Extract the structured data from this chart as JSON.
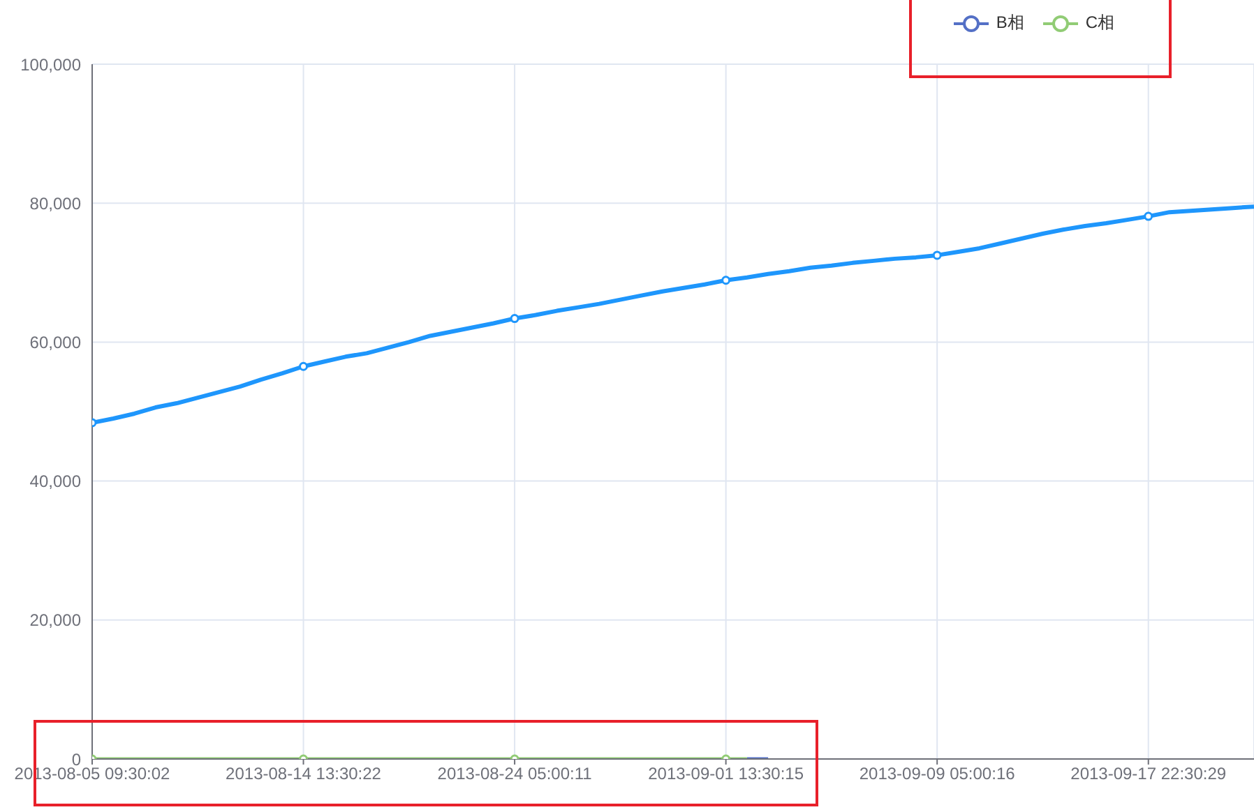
{
  "chart_data": {
    "type": "line",
    "categories": [
      "2013-08-05 09:30:02",
      null,
      null,
      null,
      null,
      null,
      null,
      null,
      null,
      null,
      "2013-08-14 13:30:22",
      null,
      null,
      null,
      null,
      null,
      null,
      null,
      null,
      null,
      "2013-08-24 05:00:11",
      null,
      null,
      null,
      null,
      null,
      null,
      null,
      null,
      null,
      "2013-09-01 13:30:15",
      null,
      null,
      null,
      null,
      null,
      null,
      null,
      null,
      null,
      "2013-09-09 05:00:16",
      null,
      null,
      null,
      null,
      null,
      null,
      null,
      null,
      null,
      "2013-09-17 22:30:29",
      null,
      null,
      null,
      null,
      null
    ],
    "series": [
      {
        "color": "#1e96fc",
        "values": [
          48400,
          49000,
          49700,
          50600,
          51200,
          52000,
          52800,
          53600,
          54600,
          55500,
          56500,
          57200,
          57900,
          58400,
          59200,
          60000,
          60900,
          61500,
          62100,
          62700,
          63400,
          63900,
          64500,
          65000,
          65500,
          66100,
          66700,
          67300,
          67800,
          68300,
          68900,
          69300,
          69800,
          70200,
          70700,
          71000,
          71400,
          71700,
          72000,
          72200,
          72500,
          73000,
          73500,
          74200,
          74900,
          75600,
          76200,
          76700,
          77100,
          77600,
          78100,
          78700,
          78900,
          79100,
          79300,
          79500
        ]
      },
      {
        "name": "B相",
        "color": "#5470c6",
        "values": [
          null,
          null,
          null,
          null,
          null,
          null,
          null,
          null,
          null,
          null,
          null,
          null,
          null,
          null,
          null,
          null,
          null,
          null,
          null,
          null,
          null,
          null,
          null,
          null,
          null,
          null,
          null,
          null,
          null,
          null,
          null,
          0,
          0,
          null,
          null,
          null,
          null,
          null,
          null,
          null,
          null,
          null,
          null,
          null,
          null,
          null,
          null,
          null,
          null,
          null,
          null,
          null,
          null,
          null,
          null,
          null
        ]
      },
      {
        "name": "C相",
        "color": "#91cc75",
        "values": [
          0,
          0,
          0,
          0,
          0,
          0,
          0,
          0,
          0,
          0,
          0,
          0,
          0,
          0,
          0,
          0,
          0,
          0,
          0,
          0,
          0,
          0,
          0,
          0,
          0,
          0,
          0,
          0,
          0,
          0,
          0,
          0,
          null,
          null,
          null,
          null,
          null,
          null,
          null,
          null,
          null,
          null,
          null,
          null,
          null,
          null,
          null,
          null,
          null,
          null,
          null,
          null,
          null,
          null,
          null,
          null
        ]
      }
    ],
    "ylim": [
      0,
      100000
    ],
    "yticks": [
      0,
      {
        "value": 20000,
        "label": "20,000"
      },
      {
        "value": 40000,
        "label": "40,000"
      },
      {
        "value": 60000,
        "label": "60,000"
      },
      {
        "value": 80000,
        "label": "80,000"
      },
      {
        "value": 100000,
        "label": "100,000"
      }
    ],
    "grid": true,
    "legend": "top right"
  }
}
